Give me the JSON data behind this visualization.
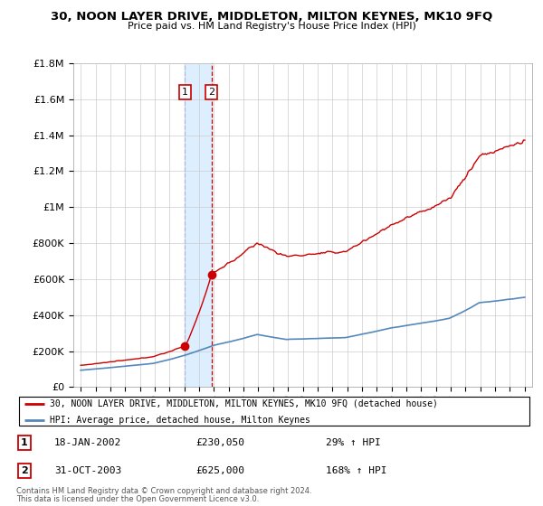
{
  "title": "30, NOON LAYER DRIVE, MIDDLETON, MILTON KEYNES, MK10 9FQ",
  "subtitle": "Price paid vs. HM Land Registry's House Price Index (HPI)",
  "legend_line1": "30, NOON LAYER DRIVE, MIDDLETON, MILTON KEYNES, MK10 9FQ (detached house)",
  "legend_line2": "HPI: Average price, detached house, Milton Keynes",
  "sale1_date": "18-JAN-2002",
  "sale1_price": "£230,050",
  "sale1_hpi": "29% ↑ HPI",
  "sale2_date": "31-OCT-2003",
  "sale2_price": "£625,000",
  "sale2_hpi": "168% ↑ HPI",
  "footer1": "Contains HM Land Registry data © Crown copyright and database right 2024.",
  "footer2": "This data is licensed under the Open Government Licence v3.0.",
  "sale1_x": 2002.05,
  "sale1_y": 230050,
  "sale2_x": 2003.83,
  "sale2_y": 625000,
  "ylim": [
    0,
    1800000
  ],
  "xlim": [
    1994.5,
    2025.5
  ],
  "red_color": "#cc0000",
  "blue_color": "#5588bb",
  "shade_color": "#ddeeff",
  "background_color": "#ffffff",
  "grid_color": "#cccccc"
}
